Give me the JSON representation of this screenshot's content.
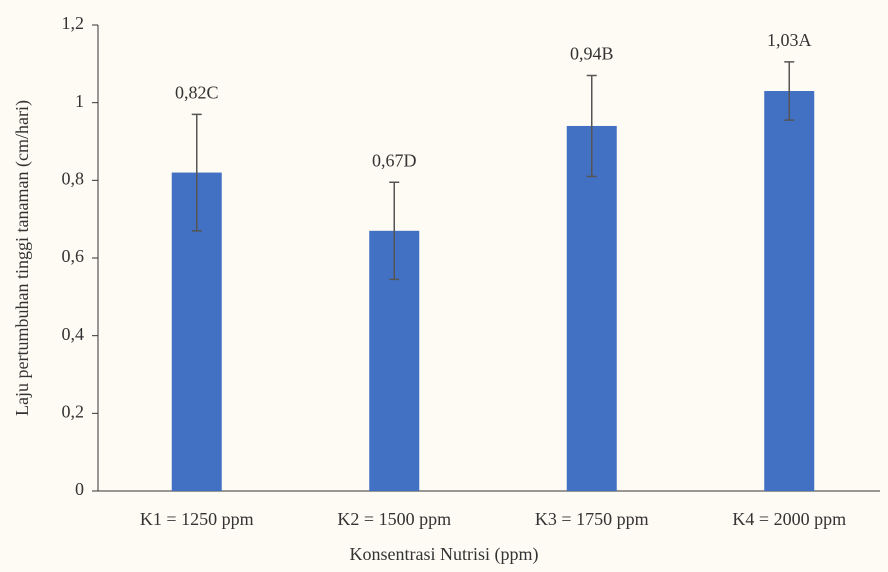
{
  "chart_data": {
    "type": "bar",
    "x_label": "Konsentrasi Nutrisi (ppm)",
    "y_label": "Laju pertumbuhan tinggi tanaman (cm/hari)",
    "categories": [
      "K1 = 1250 ppm",
      "K2 = 1500 ppm",
      "K3 = 1750 ppm",
      "K4 = 2000 ppm"
    ],
    "values": [
      0.82,
      0.67,
      0.94,
      1.03
    ],
    "value_labels": [
      "0,82C",
      "0,67D",
      "0,94B",
      "1,03A"
    ],
    "errors": [
      0.15,
      0.125,
      0.13,
      0.075
    ],
    "color": "#4270c2",
    "ylim": [
      0,
      1.2
    ],
    "yticks": [
      0,
      {
        "value": 0.2,
        "label": "0,2"
      },
      {
        "value": 0.4,
        "label": "0,4"
      },
      {
        "value": 0.6,
        "label": "0,6"
      },
      {
        "value": 0.8,
        "label": "0,8"
      },
      1,
      {
        "value": 1.2,
        "label": "1,2"
      }
    ]
  }
}
